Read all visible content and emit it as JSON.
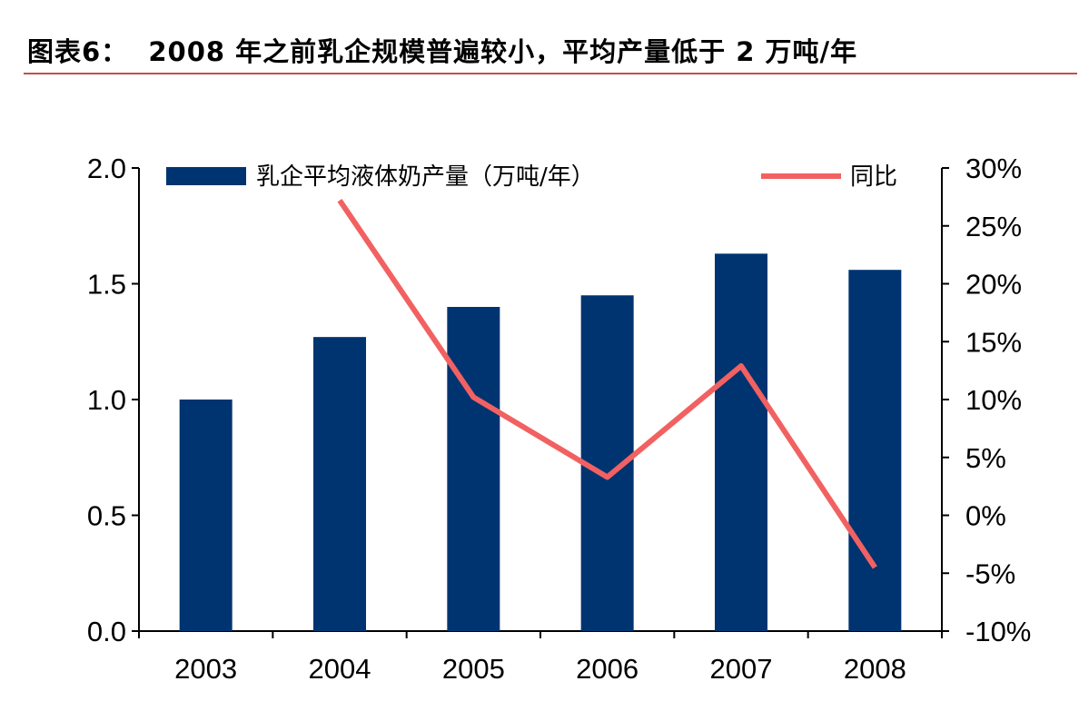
{
  "title": "图表6：  2008 年之前乳企规模普遍较小，平均产量低于 2 万吨/年",
  "colors": {
    "bar": "#003471",
    "line": "#f26161",
    "rule": "#c0504d"
  },
  "chart_data": {
    "type": "bar+line",
    "categories": [
      "2003",
      "2004",
      "2005",
      "2006",
      "2007",
      "2008"
    ],
    "series": [
      {
        "name": "乳企平均液体奶产量（万吨/年）",
        "type": "bar",
        "axis": "left",
        "values": [
          1.0,
          1.27,
          1.4,
          1.45,
          1.63,
          1.56
        ]
      },
      {
        "name": "同比",
        "type": "line",
        "axis": "right",
        "values": [
          null,
          27.2,
          10.2,
          3.3,
          12.9,
          -4.5
        ]
      }
    ],
    "ylim_left": [
      0,
      2.0
    ],
    "yticks_left": [
      "0.0",
      "0.5",
      "1.0",
      "1.5",
      "2.0"
    ],
    "ylim_right": [
      -10,
      30
    ],
    "yticks_right": [
      "-10%",
      "-5%",
      "0%",
      "5%",
      "10%",
      "15%",
      "20%",
      "25%",
      "30%"
    ],
    "grid": false,
    "legend": "top"
  }
}
